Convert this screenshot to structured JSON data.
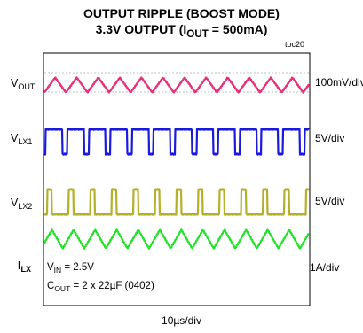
{
  "chart_data": {
    "type": "line",
    "title": "OUTPUT RIPPLE (BOOST MODE)",
    "subtitle": {
      "prefix": "3.3V OUTPUT (",
      "sym": "I",
      "sub": "OUT",
      "suffix": " = 500mA)"
    },
    "figure_id": "toc20",
    "x_scale": "10µs/div",
    "grid": false,
    "channels": [
      {
        "name": "OUTPUT",
        "label_main": "V",
        "label_sub": "OUT",
        "scale": "100mV/div",
        "color": "#e8307a",
        "waveform": "triangle",
        "period_us": 8.1,
        "phase_us": 0.0,
        "amplitude_div": 0.6
      },
      {
        "name": "LX1",
        "label_main": "V",
        "label_sub": "LX1",
        "scale": "5V/div",
        "color": "#1a1adf",
        "waveform": "pulse",
        "period_us": 8.1,
        "phase_us": 1.3,
        "low_duty": 0.22,
        "amplitude_div": 1.0
      },
      {
        "name": "LX2",
        "label_main": "V",
        "label_sub": "LX2",
        "scale": "5V/div",
        "color": "#b4b02a",
        "waveform": "pulse",
        "period_us": 8.1,
        "phase_us": 5.3,
        "low_duty": 0.78,
        "amplitude_div": 1.0
      },
      {
        "name": "LX",
        "label_main": "I",
        "label_sub": "LX",
        "scale": "1A/div",
        "color": "#22e22a",
        "waveform": "triangle",
        "period_us": 8.1,
        "phase_us": 1.2,
        "amplitude_div": 0.75
      }
    ],
    "conditions": [
      {
        "main": "V",
        "sub": "IN",
        "text": " = 2.5V"
      },
      {
        "main": "C",
        "sub": "OUT",
        "text": " = 2 x 22µF (0402)"
      }
    ]
  }
}
